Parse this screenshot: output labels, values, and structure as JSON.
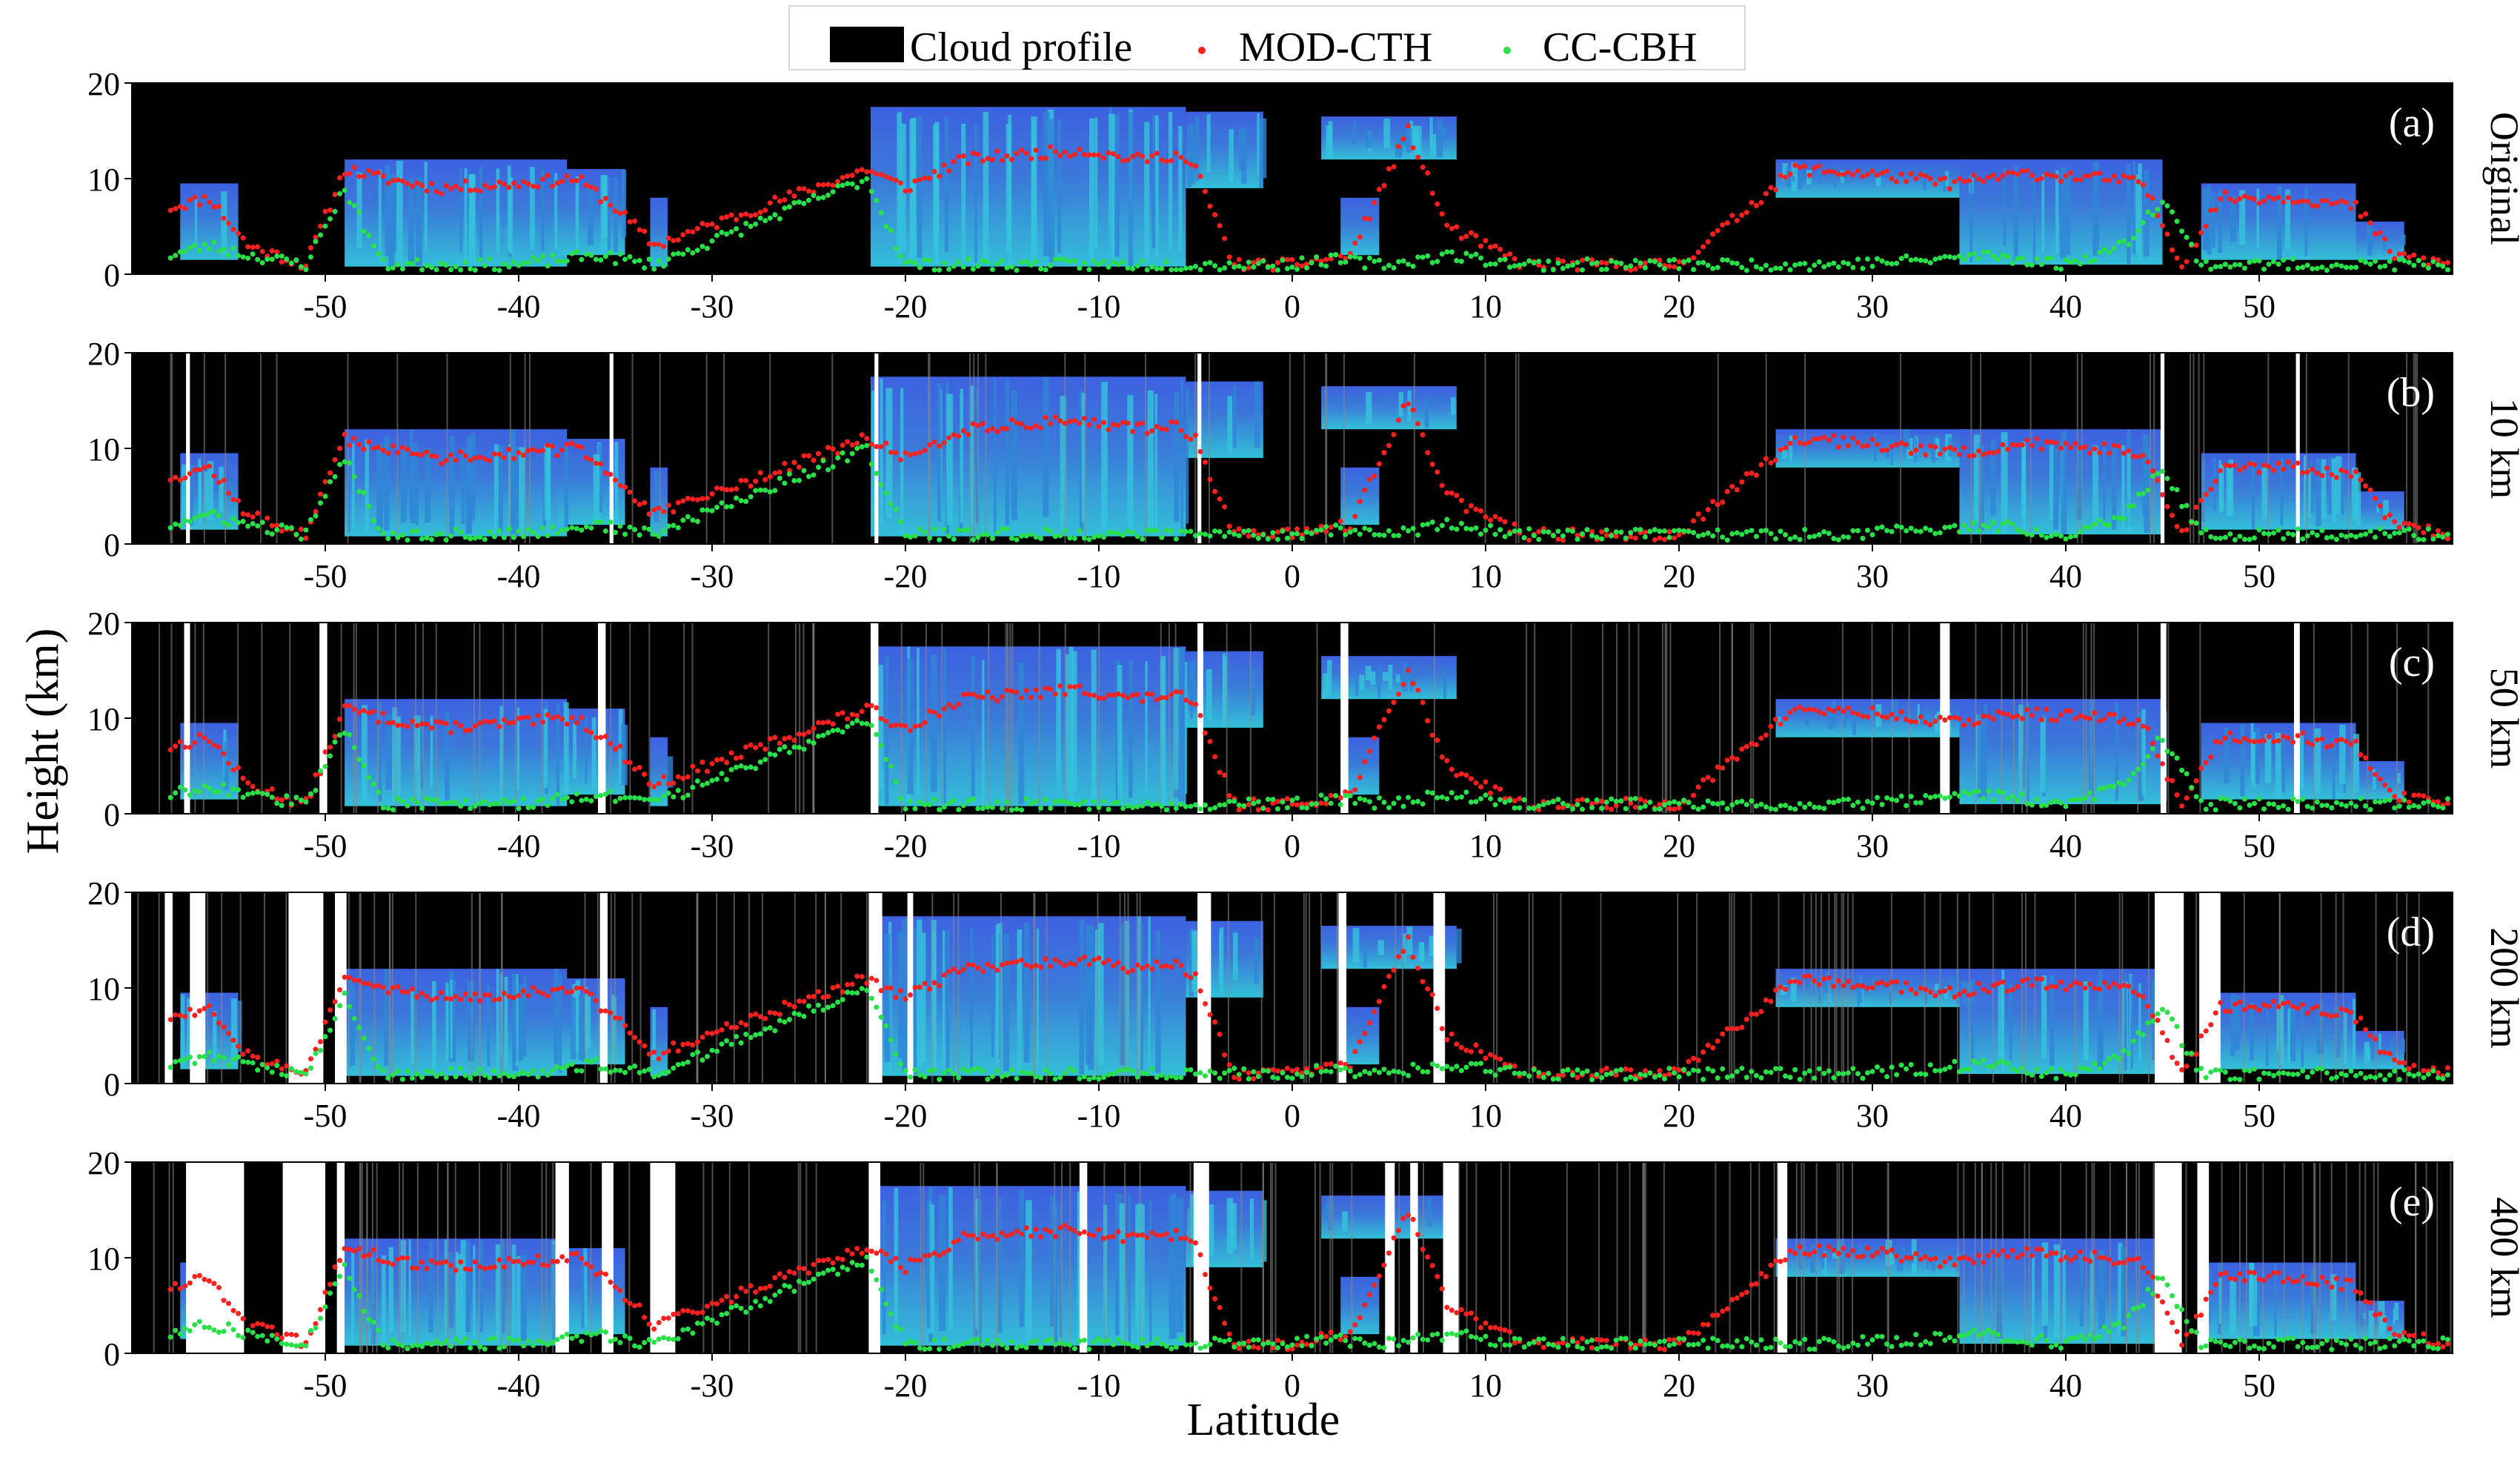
{
  "chart_data": {
    "type": "heatmap",
    "description_colors": {
      "cloud_top": "#3c5fd8",
      "cloud_core": "#31b7d6",
      "cloud_deep": "#2b8fd0",
      "background": "#000000",
      "gap": "#ffffff",
      "mod_cth": "#ff2020",
      "cc_cbh": "#29e04a"
    },
    "legend": [
      {
        "label": "Cloud profile",
        "marker": "block"
      },
      {
        "label": "MOD-CTH",
        "marker": "dot-red"
      },
      {
        "label": "CC-CBH",
        "marker": "dot-green"
      }
    ],
    "xlabel": "Latitude",
    "ylabel": "Height (km)",
    "xlim": [
      -60,
      60
    ],
    "ylim": [
      0,
      20
    ],
    "x_ticks": [
      -50,
      -40,
      -30,
      -20,
      -10,
      0,
      10,
      20,
      30,
      40,
      50
    ],
    "y_ticks": [
      0,
      10,
      20
    ],
    "panels": [
      {
        "letter": "(a)",
        "side_label": "Original",
        "gaps": []
      },
      {
        "letter": "(b)",
        "side_label": "10 km",
        "gaps": [
          [
            -57.2,
            -57.0
          ],
          [
            -35.3,
            -35.1
          ],
          [
            -21.6,
            -21.4
          ],
          [
            -4.9,
            -4.7
          ],
          [
            44.9,
            45.1
          ],
          [
            51.9,
            52.1
          ]
        ]
      },
      {
        "letter": "(c)",
        "side_label": "50 km",
        "gaps": [
          [
            -57.3,
            -57.0
          ],
          [
            -50.3,
            -49.9
          ],
          [
            -35.9,
            -35.5
          ],
          [
            -21.8,
            -21.4
          ],
          [
            -4.9,
            -4.6
          ],
          [
            2.5,
            2.9
          ],
          [
            33.5,
            34.0
          ],
          [
            44.9,
            45.2
          ],
          [
            51.8,
            52.1
          ]
        ]
      },
      {
        "letter": "(d)",
        "side_label": "200 km",
        "gaps": [
          [
            -58.3,
            -57.9
          ],
          [
            -57.0,
            -56.2
          ],
          [
            -51.9,
            -50.1
          ],
          [
            -49.5,
            -48.9
          ],
          [
            -35.8,
            -35.4
          ],
          [
            -21.9,
            -21.2
          ],
          [
            -19.9,
            -19.6
          ],
          [
            -4.9,
            -4.2
          ],
          [
            2.4,
            2.8
          ],
          [
            7.3,
            7.9
          ],
          [
            44.6,
            46.1
          ],
          [
            46.9,
            48.0
          ]
        ]
      },
      {
        "letter": "(e)",
        "side_label": "400 km",
        "gaps": [
          [
            -57.2,
            -54.2
          ],
          [
            -52.2,
            -50.0
          ],
          [
            -49.4,
            -49.0
          ],
          [
            -38.1,
            -37.4
          ],
          [
            -35.7,
            -35.1
          ],
          [
            -33.2,
            -31.9
          ],
          [
            -21.9,
            -21.3
          ],
          [
            -11.0,
            -10.6
          ],
          [
            -5.1,
            -4.3
          ],
          [
            4.8,
            5.3
          ],
          [
            6.1,
            6.5
          ],
          [
            7.8,
            8.6
          ],
          [
            25.1,
            25.6
          ],
          [
            44.6,
            46.0
          ],
          [
            46.8,
            47.4
          ]
        ]
      }
    ]
  }
}
